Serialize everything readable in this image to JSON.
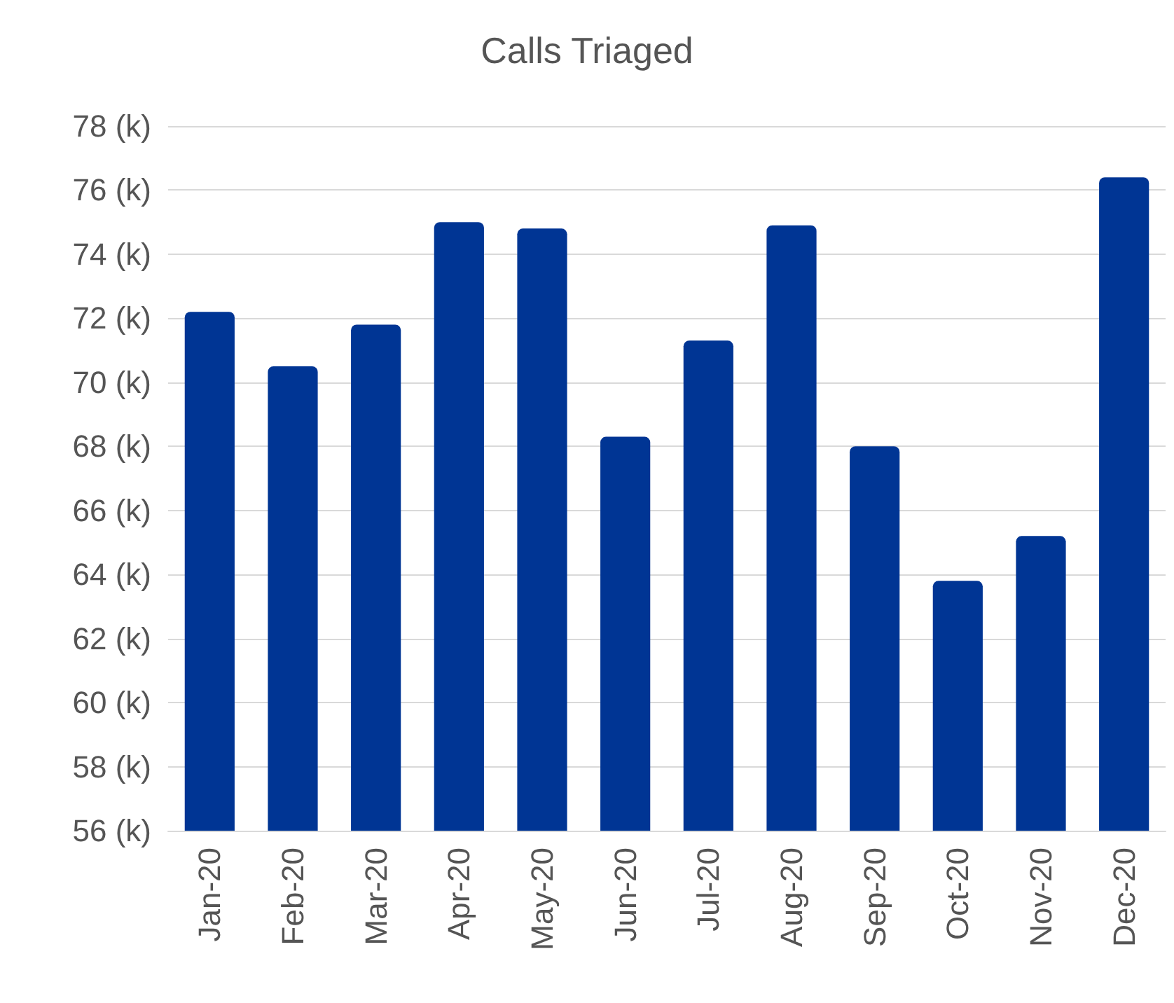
{
  "chart_data": {
    "type": "bar",
    "title": "Calls Triaged",
    "categories": [
      "Jan-20",
      "Feb-20",
      "Mar-20",
      "Apr-20",
      "May-20",
      "Jun-20",
      "Jul-20",
      "Aug-20",
      "Sep-20",
      "Oct-20",
      "Nov-20",
      "Dec-20"
    ],
    "values": [
      72.2,
      70.5,
      71.8,
      75.0,
      74.8,
      68.3,
      71.3,
      74.9,
      68.0,
      63.8,
      65.2,
      76.4
    ],
    "color": "#003594",
    "ylim": [
      56,
      78
    ],
    "yticks": [
      {
        "value": 56,
        "label": "56 (k)"
      },
      {
        "value": 58,
        "label": "58 (k)"
      },
      {
        "value": 60,
        "label": "60 (k)"
      },
      {
        "value": 62,
        "label": "62 (k)"
      },
      {
        "value": 64,
        "label": "64 (k)"
      },
      {
        "value": 66,
        "label": "66 (k)"
      },
      {
        "value": 68,
        "label": "68 (k)"
      },
      {
        "value": 70,
        "label": "70 (k)"
      },
      {
        "value": 72,
        "label": "72 (k)"
      },
      {
        "value": 74,
        "label": "74 (k)"
      },
      {
        "value": 76,
        "label": "76 (k)"
      },
      {
        "value": 78,
        "label": "78 (k)"
      }
    ],
    "grid": true
  }
}
